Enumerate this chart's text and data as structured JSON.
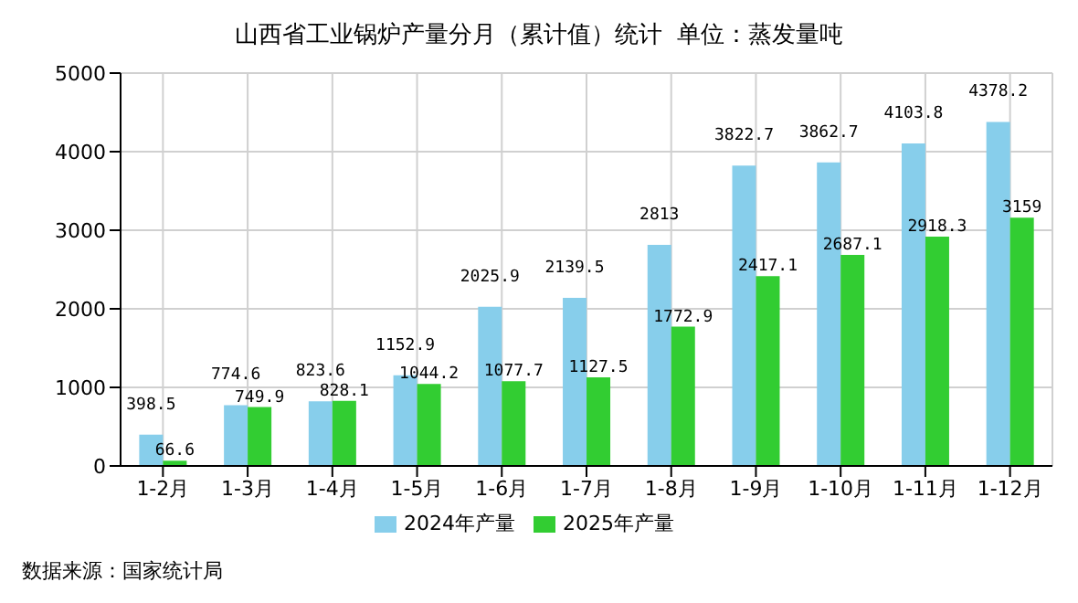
{
  "chart_data": {
    "type": "bar",
    "title": "山西省工业锅炉产量分月（累计值）统计  单位：蒸发量吨",
    "categories": [
      "1-2月",
      "1-3月",
      "1-4月",
      "1-5月",
      "1-6月",
      "1-7月",
      "1-8月",
      "1-9月",
      "1-10月",
      "1-11月",
      "1-12月"
    ],
    "series": [
      {
        "name": "2024年产量",
        "color": "#87ceeb",
        "values": [
          398.5,
          774.6,
          823.6,
          1152.9,
          2025.9,
          2139.5,
          2813,
          3822.7,
          3862.7,
          4103.8,
          4378.2
        ]
      },
      {
        "name": "2025年产量",
        "color": "#32cd32",
        "values": [
          66.6,
          749.9,
          828.1,
          1044.2,
          1077.7,
          1127.5,
          1772.9,
          2417.1,
          2687.1,
          2918.3,
          3159
        ]
      }
    ],
    "ylim": [
      0,
      5000
    ],
    "yticks": [
      0,
      1000,
      2000,
      3000,
      4000,
      5000
    ],
    "grid": true,
    "legend": "bottom",
    "data_labels": true,
    "annotations": [
      "数据来源：国家统计局"
    ]
  }
}
